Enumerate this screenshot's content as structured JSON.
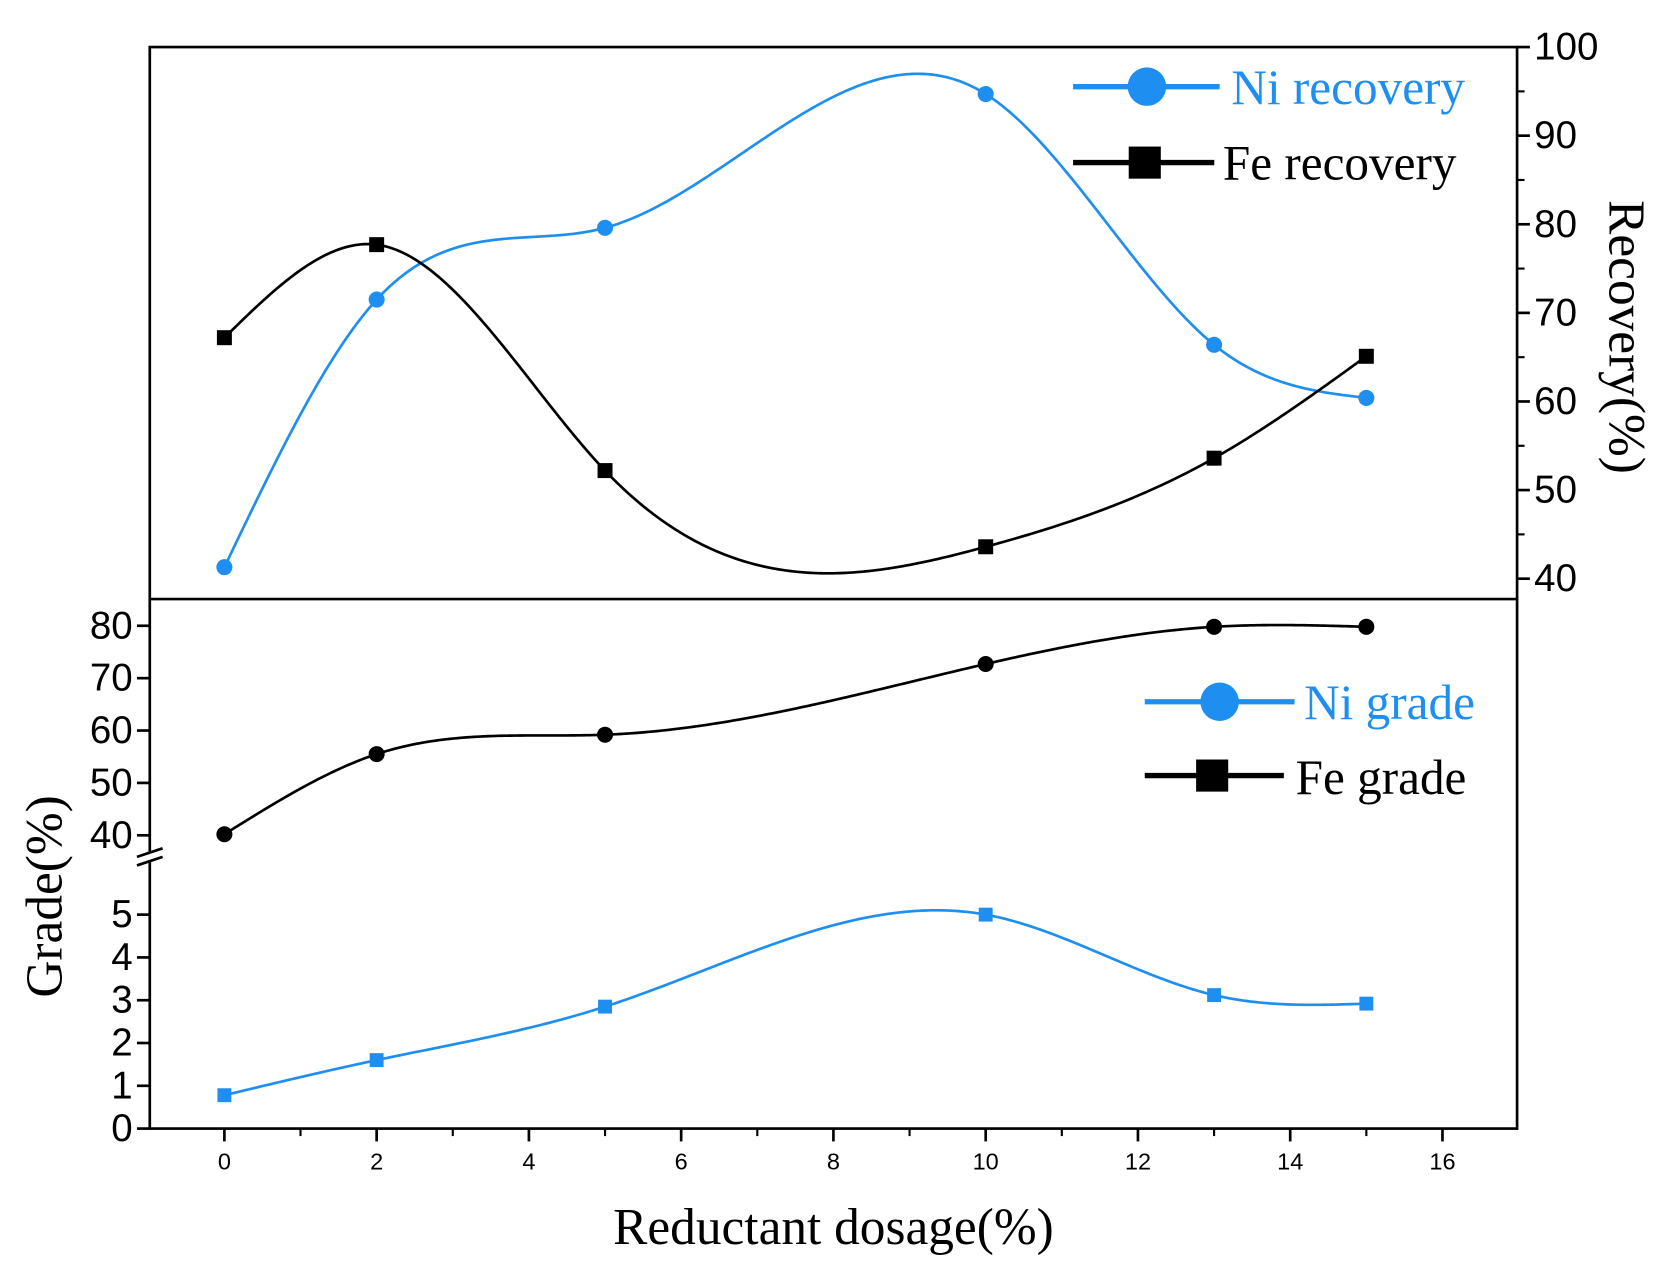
{
  "figure": {
    "xlabel": "Reductant dosage(%)",
    "xticks": [
      0,
      2,
      4,
      6,
      8,
      10,
      12,
      14,
      16
    ],
    "xlim": [
      -0.98,
      16.98
    ]
  },
  "chart_data": [
    {
      "type": "line",
      "ylabel": "Recovery(%)",
      "ylim": [
        37.7,
        100
      ],
      "yticks": [
        40,
        50,
        60,
        70,
        80,
        90,
        100
      ],
      "x": [
        0,
        2,
        5,
        10,
        13,
        15
      ],
      "series": [
        {
          "name": "Ni recovery",
          "color": "#1E8FF0",
          "values": [
            41.3,
            71.5,
            79.6,
            94.7,
            66.4,
            60.4
          ]
        },
        {
          "name": "Fe recovery",
          "color": "#000000",
          "values": [
            67.2,
            77.7,
            52.2,
            43.6,
            53.6,
            65.1
          ]
        }
      ]
    },
    {
      "type": "line",
      "ylabel": "Grade(%)",
      "y_segments": [
        {
          "range": [
            0,
            6.3
          ],
          "ticks": [
            0,
            1,
            2,
            3,
            4,
            5
          ]
        },
        {
          "range": [
            36.7,
            85.1
          ],
          "ticks": [
            40,
            50,
            60,
            70,
            80
          ]
        }
      ],
      "x": [
        0,
        2,
        5,
        10,
        13,
        15
      ],
      "series": [
        {
          "name": "Ni grade",
          "color": "#1E8FF0",
          "segment": 0,
          "values": [
            0.78,
            1.6,
            2.85,
            5.0,
            3.12,
            2.92
          ]
        },
        {
          "name": "Fe grade",
          "color": "#000000",
          "segment": 1,
          "values": [
            40.2,
            55.5,
            59.2,
            72.7,
            79.8,
            79.8
          ]
        }
      ]
    }
  ]
}
